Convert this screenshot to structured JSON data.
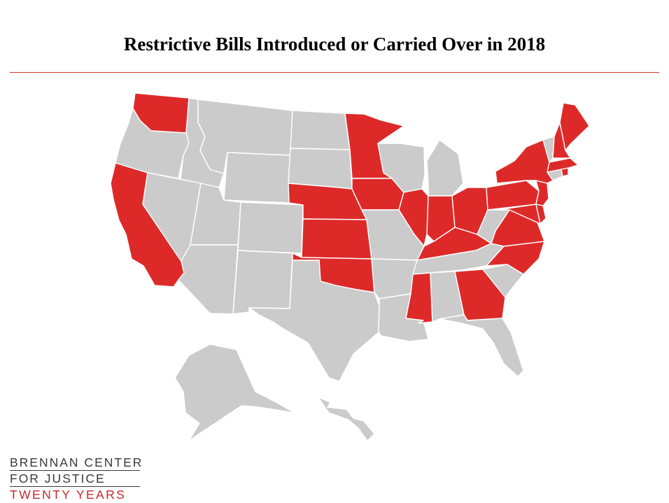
{
  "title": "Restrictive Bills Introduced or Carried Over in 2018",
  "colors": {
    "highlighted": "#dd2a29",
    "other": "#cbcbcb",
    "rule": "#d6332f"
  },
  "highlighted_states": [
    "Washington",
    "California",
    "Minnesota",
    "Nebraska",
    "Kansas",
    "Oklahoma",
    "Iowa",
    "Illinois",
    "Indiana",
    "Ohio",
    "Kentucky",
    "Mississippi",
    "Georgia",
    "Virginia",
    "North Carolina",
    "Maryland",
    "Delaware",
    "New Jersey",
    "Pennsylvania",
    "New York",
    "Massachusetts",
    "Rhode Island",
    "New Hampshire",
    "Maine"
  ],
  "logo": {
    "line1": "BRENNAN CENTER",
    "line2": "FOR JUSTICE",
    "line3": "TWENTY YEARS"
  }
}
